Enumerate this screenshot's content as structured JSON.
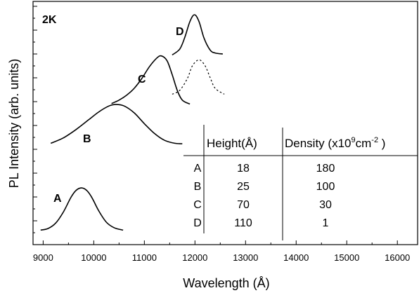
{
  "chart_data": {
    "type": "line",
    "annotation": "2K",
    "xlabel": "Wavelength (Å)",
    "ylabel": "PL Intensity (arb. units)",
    "xlim": [
      8800,
      16400
    ],
    "ticks": [
      9000,
      10000,
      11000,
      12000,
      13000,
      14000,
      15000,
      16000
    ],
    "tick_labels": [
      "9000",
      "10000",
      "11000",
      "12000",
      "13000",
      "14000",
      "15000",
      "16000"
    ],
    "y_ticks_labeled": false,
    "series": [
      {
        "name": "A",
        "peak_wavelength": 9760,
        "dashed": false,
        "x": [
          8950,
          9100,
          9250,
          9400,
          9550,
          9650,
          9760,
          9870,
          9970,
          10100,
          10250,
          10400,
          10550,
          10580
        ],
        "y": [
          0.05,
          0.22,
          0.78,
          1.9,
          3.4,
          4.1,
          4.35,
          4.05,
          3.3,
          2.0,
          0.85,
          0.3,
          0.08,
          0.05
        ]
      },
      {
        "name": "B",
        "peak_wavelength": 10440,
        "dashed": false,
        "x": [
          9150,
          9400,
          9650,
          9900,
          10100,
          10300,
          10440,
          10600,
          10800,
          11000,
          11200,
          11400,
          11600,
          11750
        ],
        "y": [
          8.9,
          9.45,
          10.3,
          11.3,
          12.1,
          12.7,
          12.85,
          12.7,
          12.0,
          10.9,
          9.9,
          9.2,
          8.9,
          8.85
        ]
      },
      {
        "name": "C",
        "peak_wavelength": 11340,
        "dashed": false,
        "x": [
          10350,
          10500,
          10650,
          10800,
          10950,
          11100,
          11250,
          11340,
          11450,
          11550,
          11650,
          11750,
          11900
        ],
        "y": [
          12.95,
          13.3,
          13.8,
          14.5,
          15.5,
          16.7,
          17.6,
          17.8,
          17.3,
          15.9,
          14.3,
          13.3,
          12.9
        ]
      },
      {
        "name": "D",
        "peak_wavelength": 11990,
        "dashed": false,
        "x": [
          11550,
          11700,
          11800,
          11900,
          11990,
          12080,
          12180,
          12300,
          12400,
          12550
        ],
        "y": [
          17.9,
          18.5,
          19.7,
          21.3,
          22.0,
          21.3,
          19.6,
          18.4,
          18.1,
          18.0
        ]
      },
      {
        "name": "D (dotted)",
        "peak_wavelength": 12080,
        "dashed": true,
        "x": [
          11550,
          11700,
          11850,
          11950,
          12080,
          12200,
          12300,
          12400,
          12580
        ],
        "y": [
          13.9,
          14.3,
          15.5,
          16.8,
          17.4,
          16.8,
          15.6,
          14.5,
          13.9
        ]
      }
    ]
  },
  "annotation": "2K",
  "ylabel": "PL Intensity (arb. units)",
  "xlabel": "Wavelength (Å)",
  "curve_labels": [
    "A",
    "B",
    "C",
    "D"
  ],
  "table": {
    "headers": [
      "",
      "Height(Å)",
      "Density (x10⁹cm⁻² )"
    ],
    "header_density_parts": {
      "base": "Density (x10",
      "sup1": "9",
      "mid": "cm",
      "sup2": "-2",
      "tail": " )"
    },
    "rows": [
      [
        "A",
        "18",
        "180"
      ],
      [
        "B",
        "25",
        "100"
      ],
      [
        "C",
        "70",
        "30"
      ],
      [
        "D",
        "110",
        "1"
      ]
    ]
  }
}
